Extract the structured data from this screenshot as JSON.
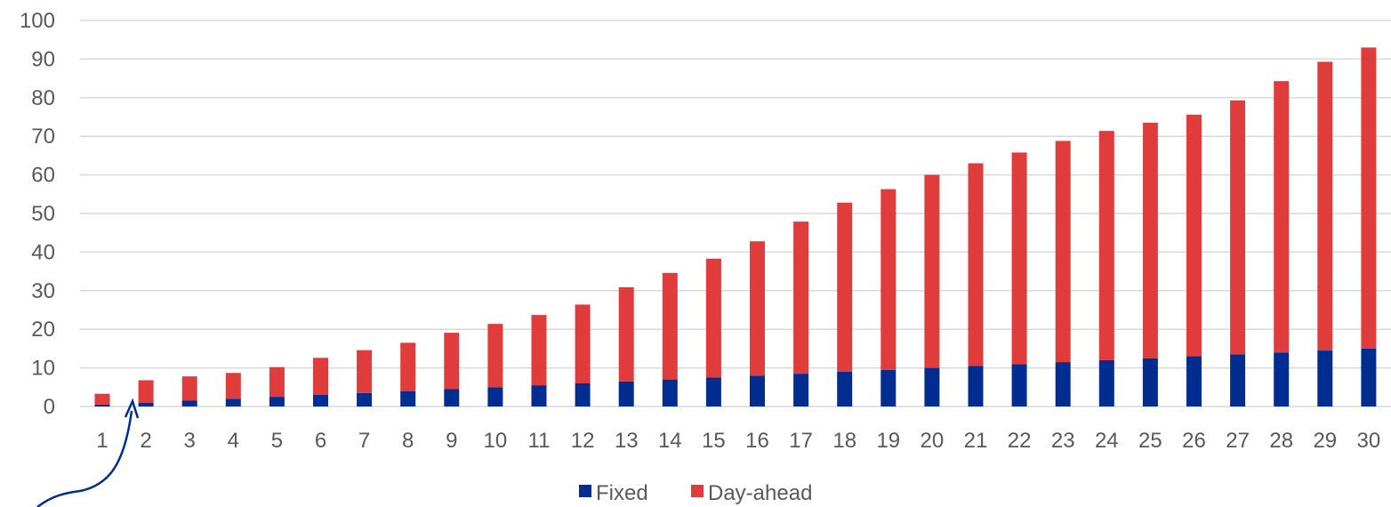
{
  "chart_data": {
    "type": "bar",
    "stacked": true,
    "categories": [
      "1",
      "2",
      "3",
      "4",
      "5",
      "6",
      "7",
      "8",
      "9",
      "10",
      "11",
      "12",
      "13",
      "14",
      "15",
      "16",
      "17",
      "18",
      "19",
      "20",
      "21",
      "22",
      "23",
      "24",
      "25",
      "26",
      "27",
      "28",
      "29",
      "30"
    ],
    "series": [
      {
        "name": "Fixed",
        "color": "#002d8f",
        "values": [
          0.5,
          1,
          1.5,
          2,
          2.5,
          3,
          3.5,
          4,
          4.5,
          5,
          5.5,
          6,
          6.5,
          7,
          7.5,
          8,
          8.5,
          9,
          9.5,
          10,
          10.5,
          11,
          11.5,
          12,
          12.5,
          13,
          13.5,
          14,
          14.5,
          15
        ]
      },
      {
        "name": "Day-ahead",
        "color": "#e03c3c",
        "values": [
          2.8,
          5.8,
          6.3,
          6.7,
          7.7,
          9.6,
          11.1,
          12.5,
          14.6,
          16.4,
          18.2,
          20.4,
          24.4,
          27.6,
          30.8,
          34.8,
          39.4,
          43.8,
          46.8,
          50,
          52.5,
          54.8,
          57.3,
          59.4,
          61,
          62.6,
          65.8,
          70.3,
          74.8,
          78
        ]
      }
    ],
    "ylim": [
      0,
      100
    ],
    "yticks": [
      "0",
      "10",
      "20",
      "30",
      "40",
      "50",
      "60",
      "70",
      "80",
      "90",
      "100"
    ],
    "grid": true,
    "legend": "bottom-center",
    "annotation": {
      "type": "curved-arrow",
      "target_category": "1.5",
      "color": "#002d8f"
    }
  }
}
